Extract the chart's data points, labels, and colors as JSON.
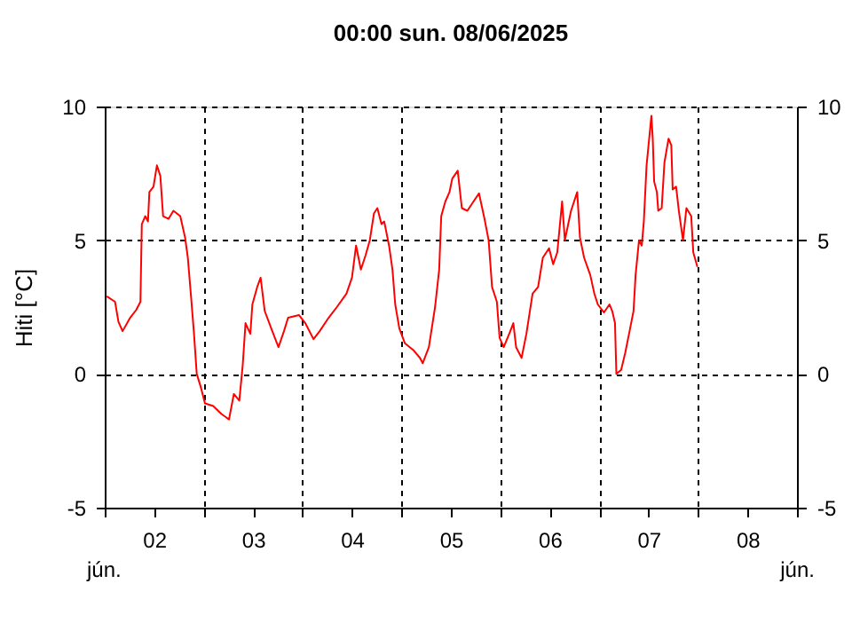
{
  "chart_data": {
    "type": "line",
    "title": "00:00   sun.  08/06/2025",
    "ylabel": "Hiti [°C]",
    "annotations": [
      "jún.",
      "jún."
    ],
    "xlim": [
      "2025-06-02T00:00",
      "2025-06-09T00:00"
    ],
    "xticks": [
      {
        "value": "2025-06-02T00:00",
        "label": null
      },
      {
        "value": "2025-06-02T12:00",
        "label": "02"
      },
      {
        "value": "2025-06-03T00:00",
        "label": null
      },
      {
        "value": "2025-06-03T12:00",
        "label": "03"
      },
      {
        "value": "2025-06-04T00:00",
        "label": null
      },
      {
        "value": "2025-06-04T12:00",
        "label": "04"
      },
      {
        "value": "2025-06-05T00:00",
        "label": null
      },
      {
        "value": "2025-06-05T12:00",
        "label": "05"
      },
      {
        "value": "2025-06-06T00:00",
        "label": null
      },
      {
        "value": "2025-06-06T12:00",
        "label": "06"
      },
      {
        "value": "2025-06-07T00:00",
        "label": null
      },
      {
        "value": "2025-06-07T12:00",
        "label": "07"
      },
      {
        "value": "2025-06-08T00:00",
        "label": null
      },
      {
        "value": "2025-06-08T12:00",
        "label": "08"
      },
      {
        "value": "2025-06-09T00:00",
        "label": null
      }
    ],
    "ylim": [
      -5,
      10
    ],
    "yticks": [
      -5,
      0,
      5,
      10
    ],
    "y2lim": [
      -5,
      10
    ],
    "y2ticks": [
      -5,
      0,
      5,
      10
    ],
    "grid": true,
    "line_style": "solid",
    "x": [
      "2025-06-02T00:30",
      "2025-06-02T02:30",
      "2025-06-02T03:20",
      "2025-06-02T04:20",
      "2025-06-02T06:10",
      "2025-06-02T07:40",
      "2025-06-02T08:40",
      "2025-06-02T09:00",
      "2025-06-02T09:50",
      "2025-06-02T10:30",
      "2025-06-02T10:50",
      "2025-06-02T11:50",
      "2025-06-02T12:40",
      "2025-06-02T13:30",
      "2025-06-02T14:10",
      "2025-06-02T15:30",
      "2025-06-02T16:40",
      "2025-06-02T18:20",
      "2025-06-02T19:30",
      "2025-06-02T20:10",
      "2025-06-02T21:00",
      "2025-06-02T21:40",
      "2025-06-02T22:20",
      "2025-06-02T23:20",
      "2025-06-03T00:20",
      "2025-06-03T02:20",
      "2025-06-03T04:20",
      "2025-06-03T06:10",
      "2025-06-03T07:20",
      "2025-06-03T08:40",
      "2025-06-03T09:30",
      "2025-06-03T10:10",
      "2025-06-03T11:20",
      "2025-06-03T11:50",
      "2025-06-03T13:00",
      "2025-06-03T13:50",
      "2025-06-03T14:50",
      "2025-06-03T16:40",
      "2025-06-03T18:10",
      "2025-06-03T19:30",
      "2025-06-03T20:30",
      "2025-06-03T23:10",
      "2025-06-04T00:40",
      "2025-06-04T02:40",
      "2025-06-04T04:10",
      "2025-06-04T06:20",
      "2025-06-04T08:20",
      "2025-06-04T10:40",
      "2025-06-04T12:00",
      "2025-06-04T13:00",
      "2025-06-04T14:10",
      "2025-06-04T15:20",
      "2025-06-04T16:20",
      "2025-06-04T17:20",
      "2025-06-04T18:10",
      "2025-06-04T19:10",
      "2025-06-04T19:50",
      "2025-06-04T21:00",
      "2025-06-04T21:50",
      "2025-06-04T22:30",
      "2025-06-04T23:30",
      "2025-06-05T00:50",
      "2025-06-05T02:50",
      "2025-06-05T04:30",
      "2025-06-05T05:10",
      "2025-06-05T06:40",
      "2025-06-05T08:10",
      "2025-06-05T09:10",
      "2025-06-05T09:40",
      "2025-06-05T10:40",
      "2025-06-05T11:40",
      "2025-06-05T12:20",
      "2025-06-05T13:40",
      "2025-06-05T14:40",
      "2025-06-05T16:00",
      "2025-06-05T17:30",
      "2025-06-05T18:50",
      "2025-06-05T20:10",
      "2025-06-05T21:10",
      "2025-06-05T22:00",
      "2025-06-05T23:10",
      "2025-06-05T23:50",
      "2025-06-06T00:50",
      "2025-06-06T02:10",
      "2025-06-06T03:10",
      "2025-06-06T03:50",
      "2025-06-06T05:10",
      "2025-06-06T06:20",
      "2025-06-06T07:50",
      "2025-06-06T09:10",
      "2025-06-06T10:20",
      "2025-06-06T11:50",
      "2025-06-06T12:50",
      "2025-06-06T13:50",
      "2025-06-06T15:00",
      "2025-06-06T15:40",
      "2025-06-06T17:10",
      "2025-06-06T18:40",
      "2025-06-06T19:20",
      "2025-06-06T20:20",
      "2025-06-06T21:50",
      "2025-06-06T22:50",
      "2025-06-06T23:40",
      "2025-06-07T01:10",
      "2025-06-07T02:30",
      "2025-06-07T03:10",
      "2025-06-07T03:50",
      "2025-06-07T04:10",
      "2025-06-07T05:20",
      "2025-06-07T06:20",
      "2025-06-07T07:30",
      "2025-06-07T08:20",
      "2025-06-07T08:50",
      "2025-06-07T09:40",
      "2025-06-07T10:20",
      "2025-06-07T10:50",
      "2025-06-07T11:30",
      "2025-06-07T12:40",
      "2025-06-07T13:00",
      "2025-06-07T13:20",
      "2025-06-07T14:00",
      "2025-06-07T14:20",
      "2025-06-07T15:10",
      "2025-06-07T15:50",
      "2025-06-07T16:50",
      "2025-06-07T17:30",
      "2025-06-07T17:50",
      "2025-06-07T18:40",
      "2025-06-07T19:20",
      "2025-06-07T20:20",
      "2025-06-07T21:10",
      "2025-06-07T22:20",
      "2025-06-07T22:50",
      "2025-06-07T23:50"
    ],
    "series": [
      {
        "color": "#ff0000",
        "values": [
          2.9,
          2.7,
          1.95,
          1.6,
          2.1,
          2.4,
          2.7,
          5.6,
          5.9,
          5.7,
          6.8,
          7.0,
          7.8,
          7.4,
          5.9,
          5.8,
          6.1,
          5.9,
          5.1,
          4.35,
          2.8,
          1.5,
          0.0,
          -0.5,
          -1.1,
          -1.2,
          -1.5,
          -1.7,
          -0.75,
          -1.0,
          0.35,
          1.9,
          1.5,
          2.6,
          3.25,
          3.6,
          2.35,
          1.6,
          1.0,
          1.6,
          2.1,
          2.2,
          1.9,
          1.3,
          1.6,
          2.1,
          2.5,
          3.0,
          3.6,
          4.8,
          3.9,
          4.45,
          5.0,
          6.0,
          6.2,
          5.6,
          5.7,
          4.8,
          3.9,
          2.6,
          1.7,
          1.15,
          0.9,
          0.6,
          0.4,
          1.0,
          2.5,
          3.9,
          5.9,
          6.45,
          6.8,
          7.3,
          7.6,
          6.2,
          6.1,
          6.45,
          6.75,
          5.8,
          5.0,
          3.25,
          2.7,
          1.35,
          1.0,
          1.5,
          1.9,
          1.0,
          0.6,
          1.5,
          3.0,
          3.25,
          4.35,
          4.7,
          4.1,
          4.55,
          6.45,
          5.0,
          6.1,
          6.8,
          5.1,
          4.35,
          3.7,
          3.0,
          2.6,
          2.3,
          2.6,
          2.35,
          1.9,
          0.0,
          0.15,
          0.8,
          1.7,
          2.35,
          3.7,
          5.0,
          4.8,
          5.7,
          7.8,
          9.65,
          8.8,
          7.2,
          6.8,
          6.1,
          6.2,
          7.9,
          8.8,
          8.55,
          6.9,
          7.0,
          6.1,
          5.0,
          6.2,
          5.9,
          4.55,
          4.0
        ]
      }
    ]
  }
}
